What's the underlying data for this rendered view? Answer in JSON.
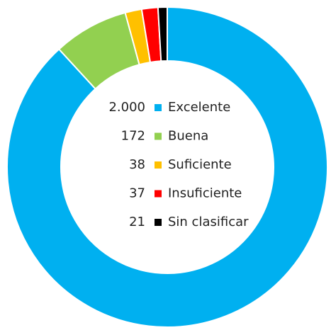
{
  "chart_data": {
    "type": "donut",
    "categories": [
      "Excelente",
      "Buena",
      "Suficiente",
      "Insuficiente",
      "Sin clasificar"
    ],
    "values": [
      2000,
      172,
      38,
      37,
      21
    ],
    "value_labels": [
      "2.000",
      "172",
      "38",
      "37",
      "21"
    ],
    "colors": [
      "#00b0f0",
      "#92d050",
      "#ffc000",
      "#ff0000",
      "#000000"
    ],
    "legend": "center"
  }
}
